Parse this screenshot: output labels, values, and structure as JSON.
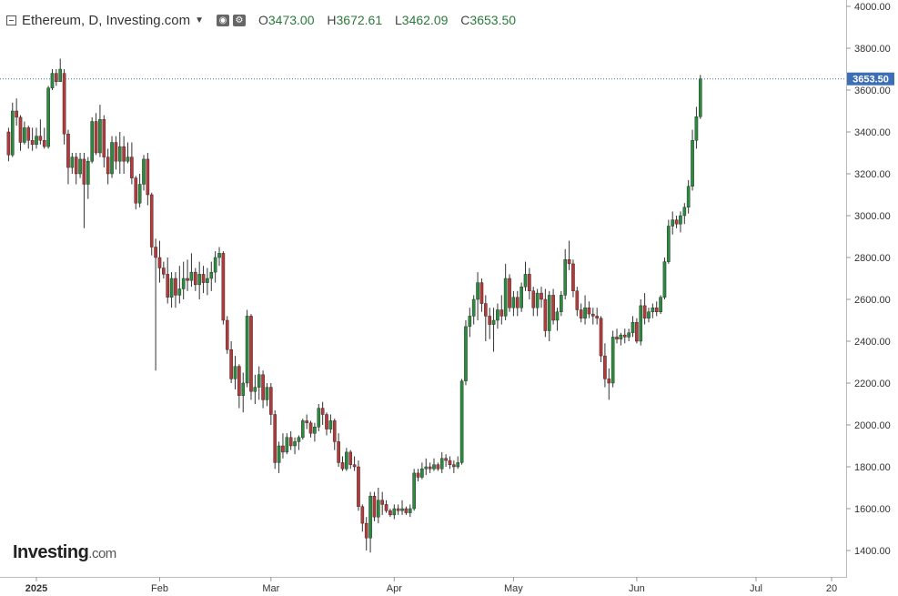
{
  "header": {
    "title": "Ethereum, D, Investing.com",
    "settings_icon": "settings-gear-icon",
    "eye_icon": "eye-icon",
    "ohlc": [
      {
        "key": "O",
        "value": "3473.00"
      },
      {
        "key": "H",
        "value": "3672.61"
      },
      {
        "key": "L",
        "value": "3462.09"
      },
      {
        "key": "C",
        "value": "3653.50"
      }
    ]
  },
  "logo": {
    "main": "Investing",
    "suffix": ".com"
  },
  "colors": {
    "up": "#2b8a3e",
    "down": "#b33a3a",
    "wick": "#333333",
    "price_label_bg": "#3d6fb6",
    "grid_line": "#4a6fa5"
  },
  "chart_data": {
    "type": "candlestick",
    "title": "Ethereum, D, Investing.com",
    "ylim": [
      1300,
      4000
    ],
    "y_ticks": [
      "4000.00",
      "3800.00",
      "3600.00",
      "3400.00",
      "3200.00",
      "3000.00",
      "2800.00",
      "2600.00",
      "2400.00",
      "2200.00",
      "2000.00",
      "1800.00",
      "1600.00",
      "1400.00"
    ],
    "x_labels": [
      {
        "label": "2025",
        "day": 0
      },
      {
        "label": "Feb",
        "day": 31
      },
      {
        "label": "Mar",
        "day": 59
      },
      {
        "label": "Apr",
        "day": 90
      },
      {
        "label": "May",
        "day": 120
      },
      {
        "label": "Jun",
        "day": 151
      },
      {
        "label": "Jul",
        "day": 181
      },
      {
        "label": "20",
        "day": 200
      }
    ],
    "last_price": "3653.50",
    "last_price_value": 3653.5,
    "first_day": -7,
    "candles": [
      [
        3400,
        3420,
        3260,
        3290
      ],
      [
        3290,
        3540,
        3280,
        3500
      ],
      [
        3500,
        3560,
        3430,
        3470
      ],
      [
        3470,
        3480,
        3310,
        3350
      ],
      [
        3350,
        3450,
        3340,
        3420
      ],
      [
        3420,
        3430,
        3320,
        3360
      ],
      [
        3360,
        3420,
        3310,
        3340
      ],
      [
        3340,
        3420,
        3320,
        3380
      ],
      [
        3380,
        3460,
        3340,
        3360
      ],
      [
        3360,
        3420,
        3320,
        3330
      ],
      [
        3330,
        3620,
        3320,
        3610
      ],
      [
        3610,
        3700,
        3600,
        3680
      ],
      [
        3680,
        3700,
        3620,
        3640
      ],
      [
        3640,
        3750,
        3640,
        3700
      ],
      [
        3680,
        3700,
        3340,
        3390
      ],
      [
        3390,
        3410,
        3150,
        3230
      ],
      [
        3230,
        3300,
        3200,
        3280
      ],
      [
        3280,
        3300,
        3150,
        3200
      ],
      [
        3200,
        3300,
        3180,
        3270
      ],
      [
        3270,
        3300,
        2940,
        3150
      ],
      [
        3150,
        3280,
        3080,
        3260
      ],
      [
        3260,
        3470,
        3250,
        3450
      ],
      [
        3450,
        3490,
        3290,
        3300
      ],
      [
        3300,
        3530,
        3280,
        3460
      ],
      [
        3460,
        3480,
        3230,
        3280
      ],
      [
        3280,
        3320,
        3150,
        3200
      ],
      [
        3200,
        3380,
        3180,
        3350
      ],
      [
        3350,
        3380,
        3220,
        3260
      ],
      [
        3260,
        3400,
        3200,
        3330
      ],
      [
        3330,
        3380,
        3200,
        3260
      ],
      [
        3260,
        3350,
        3250,
        3280
      ],
      [
        3280,
        3350,
        3150,
        3180
      ],
      [
        3180,
        3190,
        3030,
        3060
      ],
      [
        3060,
        3200,
        3040,
        3150
      ],
      [
        3150,
        3290,
        3120,
        3270
      ],
      [
        3270,
        3300,
        3050,
        3100
      ],
      [
        3100,
        3110,
        2810,
        2850
      ],
      [
        2850,
        2890,
        2260,
        2800
      ],
      [
        2800,
        2880,
        2680,
        2750
      ],
      [
        2750,
        2780,
        2700,
        2720
      ],
      [
        2720,
        2800,
        2580,
        2610
      ],
      [
        2610,
        2730,
        2560,
        2700
      ],
      [
        2700,
        2730,
        2560,
        2620
      ],
      [
        2620,
        2760,
        2580,
        2650
      ],
      [
        2650,
        2780,
        2600,
        2700
      ],
      [
        2700,
        2790,
        2640,
        2690
      ],
      [
        2690,
        2820,
        2660,
        2730
      ],
      [
        2730,
        2750,
        2640,
        2670
      ],
      [
        2670,
        2780,
        2600,
        2720
      ],
      [
        2720,
        2760,
        2630,
        2680
      ],
      [
        2680,
        2750,
        2620,
        2700
      ],
      [
        2700,
        2780,
        2640,
        2730
      ],
      [
        2730,
        2830,
        2680,
        2800
      ],
      [
        2800,
        2850,
        2760,
        2820
      ],
      [
        2820,
        2830,
        2480,
        2500
      ],
      [
        2500,
        2520,
        2340,
        2360
      ],
      [
        2360,
        2400,
        2200,
        2220
      ],
      [
        2220,
        2330,
        2170,
        2280
      ],
      [
        2280,
        2290,
        2080,
        2140
      ],
      [
        2140,
        2250,
        2060,
        2200
      ],
      [
        2200,
        2550,
        2180,
        2520
      ],
      [
        2520,
        2530,
        2120,
        2160
      ],
      [
        2160,
        2240,
        2100,
        2180
      ],
      [
        2180,
        2280,
        2120,
        2240
      ],
      [
        2240,
        2260,
        2080,
        2120
      ],
      [
        2120,
        2200,
        2090,
        2180
      ],
      [
        2180,
        2200,
        2000,
        2050
      ],
      [
        2050,
        2070,
        1790,
        1820
      ],
      [
        1820,
        1920,
        1770,
        1900
      ],
      [
        1900,
        1960,
        1840,
        1870
      ],
      [
        1870,
        1960,
        1860,
        1940
      ],
      [
        1940,
        1970,
        1880,
        1900
      ],
      [
        1900,
        1940,
        1860,
        1920
      ],
      [
        1920,
        1950,
        1880,
        1940
      ],
      [
        1940,
        2030,
        1930,
        2020
      ],
      [
        2020,
        2050,
        1980,
        2010
      ],
      [
        2010,
        2020,
        1940,
        1960
      ],
      [
        1960,
        2010,
        1920,
        1990
      ],
      [
        1990,
        2100,
        1970,
        2080
      ],
      [
        2080,
        2110,
        2000,
        2050
      ],
      [
        2050,
        2060,
        1950,
        1980
      ],
      [
        1980,
        2050,
        1960,
        2020
      ],
      [
        2020,
        2030,
        1880,
        1920
      ],
      [
        1920,
        1960,
        1800,
        1820
      ],
      [
        1820,
        1850,
        1780,
        1790
      ],
      [
        1790,
        1890,
        1780,
        1870
      ],
      [
        1870,
        1880,
        1790,
        1810
      ],
      [
        1810,
        1850,
        1780,
        1800
      ],
      [
        1800,
        1830,
        1590,
        1610
      ],
      [
        1610,
        1620,
        1490,
        1530
      ],
      [
        1530,
        1560,
        1400,
        1460
      ],
      [
        1460,
        1680,
        1390,
        1660
      ],
      [
        1660,
        1680,
        1540,
        1560
      ],
      [
        1560,
        1700,
        1530,
        1640
      ],
      [
        1640,
        1680,
        1570,
        1620
      ],
      [
        1620,
        1640,
        1580,
        1590
      ],
      [
        1590,
        1600,
        1560,
        1570
      ],
      [
        1570,
        1620,
        1550,
        1600
      ],
      [
        1600,
        1620,
        1570,
        1590
      ],
      [
        1590,
        1640,
        1570,
        1600
      ],
      [
        1600,
        1610,
        1570,
        1580
      ],
      [
        1580,
        1620,
        1560,
        1600
      ],
      [
        1600,
        1790,
        1590,
        1770
      ],
      [
        1770,
        1790,
        1730,
        1750
      ],
      [
        1750,
        1820,
        1740,
        1790
      ],
      [
        1790,
        1840,
        1760,
        1800
      ],
      [
        1800,
        1820,
        1770,
        1790
      ],
      [
        1790,
        1840,
        1780,
        1810
      ],
      [
        1810,
        1820,
        1780,
        1790
      ],
      [
        1790,
        1870,
        1770,
        1840
      ],
      [
        1840,
        1860,
        1800,
        1830
      ],
      [
        1830,
        1850,
        1790,
        1810
      ],
      [
        1810,
        1830,
        1770,
        1800
      ],
      [
        1800,
        1850,
        1790,
        1820
      ],
      [
        1820,
        2220,
        1810,
        2210
      ],
      [
        2210,
        2500,
        2190,
        2470
      ],
      [
        2470,
        2560,
        2420,
        2520
      ],
      [
        2520,
        2620,
        2480,
        2600
      ],
      [
        2600,
        2730,
        2500,
        2680
      ],
      [
        2680,
        2700,
        2540,
        2580
      ],
      [
        2580,
        2620,
        2400,
        2520
      ],
      [
        2520,
        2560,
        2410,
        2480
      ],
      [
        2480,
        2560,
        2350,
        2500
      ],
      [
        2500,
        2580,
        2460,
        2550
      ],
      [
        2550,
        2620,
        2480,
        2520
      ],
      [
        2520,
        2770,
        2500,
        2700
      ],
      [
        2700,
        2720,
        2540,
        2560
      ],
      [
        2560,
        2640,
        2520,
        2610
      ],
      [
        2610,
        2640,
        2520,
        2560
      ],
      [
        2560,
        2680,
        2540,
        2660
      ],
      [
        2660,
        2780,
        2640,
        2720
      ],
      [
        2720,
        2750,
        2600,
        2640
      ],
      [
        2640,
        2660,
        2520,
        2560
      ],
      [
        2560,
        2650,
        2520,
        2630
      ],
      [
        2630,
        2660,
        2560,
        2600
      ],
      [
        2600,
        2650,
        2420,
        2450
      ],
      [
        2450,
        2640,
        2400,
        2620
      ],
      [
        2620,
        2650,
        2480,
        2500
      ],
      [
        2500,
        2560,
        2450,
        2540
      ],
      [
        2540,
        2640,
        2520,
        2620
      ],
      [
        2620,
        2840,
        2600,
        2790
      ],
      [
        2790,
        2880,
        2740,
        2770
      ],
      [
        2770,
        2790,
        2610,
        2640
      ],
      [
        2640,
        2660,
        2520,
        2550
      ],
      [
        2550,
        2580,
        2490,
        2510
      ],
      [
        2510,
        2620,
        2480,
        2560
      ],
      [
        2560,
        2590,
        2510,
        2530
      ],
      [
        2530,
        2560,
        2480,
        2520
      ],
      [
        2520,
        2560,
        2480,
        2510
      ],
      [
        2510,
        2520,
        2300,
        2330
      ],
      [
        2330,
        2390,
        2180,
        2220
      ],
      [
        2220,
        2270,
        2120,
        2200
      ],
      [
        2200,
        2450,
        2180,
        2420
      ],
      [
        2420,
        2460,
        2390,
        2410
      ],
      [
        2410,
        2440,
        2380,
        2430
      ],
      [
        2430,
        2460,
        2390,
        2420
      ],
      [
        2420,
        2460,
        2400,
        2440
      ],
      [
        2440,
        2520,
        2420,
        2490
      ],
      [
        2490,
        2510,
        2390,
        2400
      ],
      [
        2400,
        2600,
        2380,
        2570
      ],
      [
        2570,
        2630,
        2480,
        2510
      ],
      [
        2510,
        2560,
        2490,
        2540
      ],
      [
        2540,
        2580,
        2510,
        2560
      ],
      [
        2560,
        2590,
        2520,
        2540
      ],
      [
        2540,
        2620,
        2530,
        2610
      ],
      [
        2610,
        2800,
        2600,
        2780
      ],
      [
        2780,
        2980,
        2770,
        2950
      ],
      [
        2950,
        3020,
        2910,
        2980
      ],
      [
        2980,
        3000,
        2940,
        2960
      ],
      [
        2960,
        3020,
        2920,
        3000
      ],
      [
        3000,
        3060,
        2960,
        3040
      ],
      [
        3040,
        3170,
        3010,
        3140
      ],
      [
        3140,
        3410,
        3120,
        3360
      ],
      [
        3360,
        3520,
        3320,
        3473
      ],
      [
        3473,
        3672.61,
        3462.09,
        3653.5
      ]
    ]
  }
}
